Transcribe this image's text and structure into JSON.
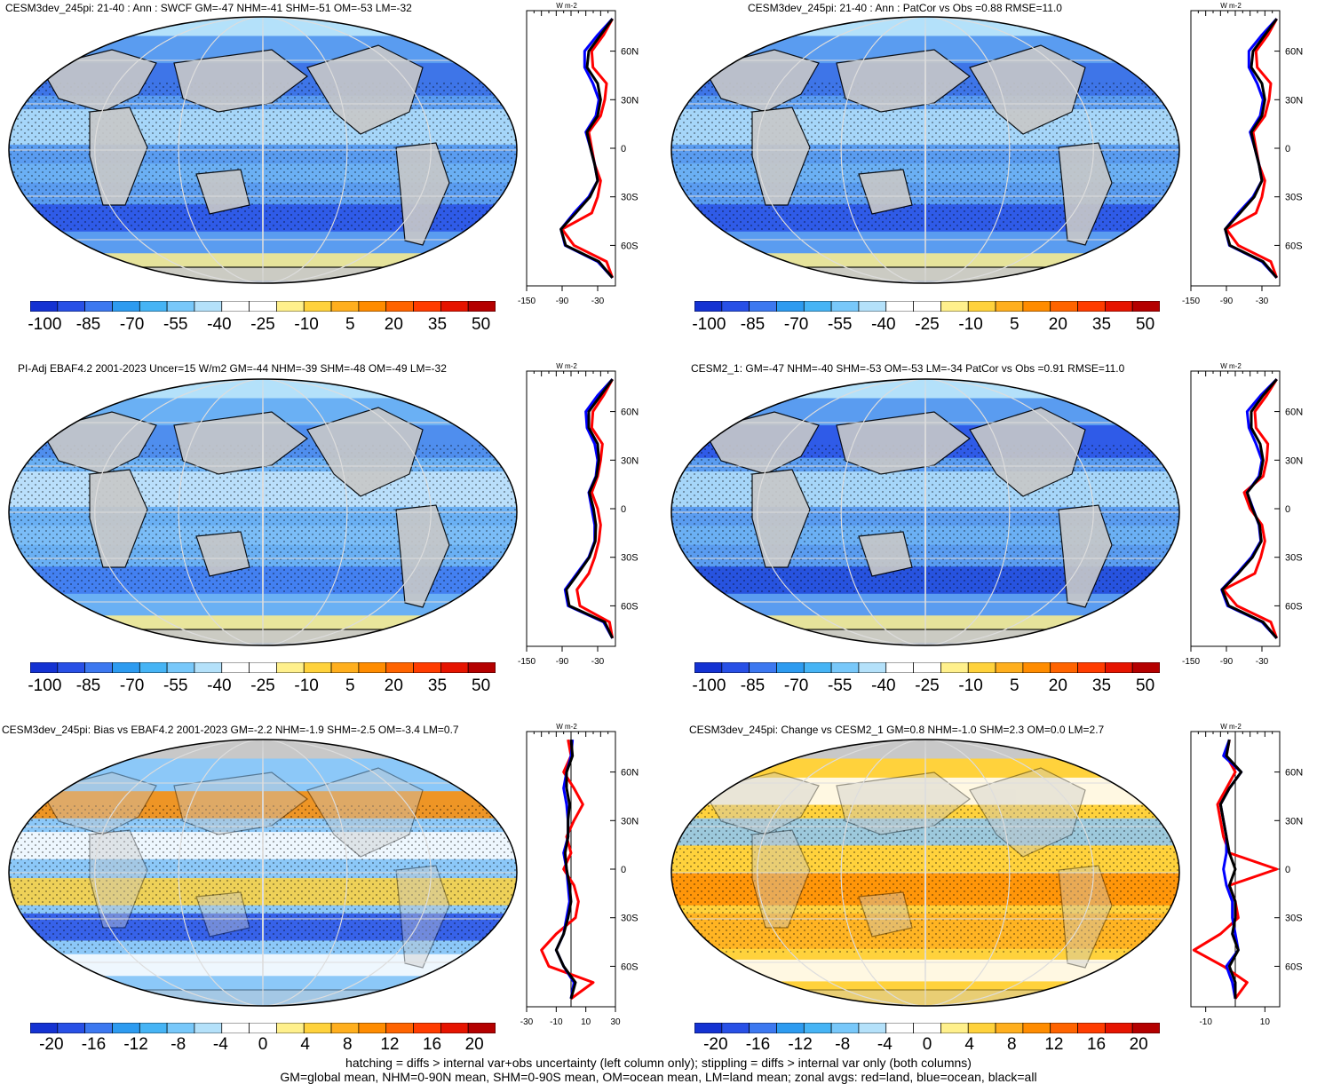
{
  "figure": {
    "footer_line1": "hatching = diffs > internal var+obs uncertainty (left column only); stippling = diffs > internal var only (both columns)",
    "footer_line2": "GM=global mean, NHM=0-90N mean, SHM=0-90S mean, OM=ocean mean, LM=land mean; zonal avgs: red=land, blue=ocean, black=all"
  },
  "colors": {
    "land": "#ff0000",
    "ocean": "#0000ff",
    "all": "#000000",
    "landmask": "#c8c8c8"
  },
  "chart_data": [
    {
      "type": "heatmap",
      "title": "CESM3dev_245pi: 21-40 : Ann : SWCF GM=-47 NHM=-41 SHM=-51 OM=-53 LM=-32",
      "colorbar_ticks": [
        "-100",
        "-85",
        "-70",
        "-55",
        "-40",
        "-25",
        "-10",
        "5",
        "20",
        "35",
        "50"
      ],
      "colorbar_range": [
        -105,
        55
      ],
      "zonal": {
        "units": "W m-2",
        "xticks": [
          "-150",
          "-90",
          "-30"
        ],
        "xlim": [
          -150,
          0
        ],
        "yticks": [
          "60N",
          "30N",
          "0",
          "30S",
          "60S"
        ],
        "lat": [
          80,
          70,
          60,
          50,
          40,
          30,
          20,
          10,
          0,
          -10,
          -20,
          -30,
          -40,
          -50,
          -60,
          -70,
          -80
        ],
        "series": [
          {
            "name": "land",
            "values": [
              -5,
              -20,
              -40,
              -38,
              -15,
              -18,
              -25,
              -45,
              -40,
              -35,
              -25,
              -30,
              -40,
              -90,
              -70,
              -15,
              -5
            ]
          },
          {
            "name": "ocean",
            "values": [
              -5,
              -30,
              -52,
              -52,
              -38,
              -28,
              -33,
              -50,
              -42,
              -35,
              -30,
              -45,
              -70,
              -92,
              -85,
              -30,
              -5
            ]
          },
          {
            "name": "all",
            "values": [
              -5,
              -25,
              -45,
              -48,
              -30,
              -25,
              -30,
              -48,
              -42,
              -35,
              -30,
              -43,
              -67,
              -92,
              -84,
              -28,
              -5
            ]
          }
        ]
      }
    },
    {
      "type": "heatmap",
      "title": "CESM3dev_245pi: 21-40 : Ann : PatCor vs Obs =0.88 RMSE=11.0",
      "colorbar_ticks": [
        "-100",
        "-85",
        "-70",
        "-55",
        "-40",
        "-25",
        "-10",
        "5",
        "20",
        "35",
        "50"
      ],
      "colorbar_range": [
        -105,
        55
      ],
      "zonal": {
        "units": "W m-2",
        "xticks": [
          "-150",
          "-90",
          "-30"
        ],
        "xlim": [
          -150,
          0
        ],
        "yticks": [
          "60N",
          "30N",
          "0",
          "30S",
          "60S"
        ],
        "lat": [
          80,
          70,
          60,
          50,
          40,
          30,
          20,
          10,
          0,
          -10,
          -20,
          -30,
          -40,
          -50,
          -60,
          -70,
          -80
        ],
        "series": [
          {
            "name": "land",
            "values": [
              -5,
              -20,
              -40,
              -38,
              -15,
              -18,
              -25,
              -45,
              -40,
              -35,
              -25,
              -30,
              -40,
              -90,
              -70,
              -15,
              -5
            ]
          },
          {
            "name": "ocean",
            "values": [
              -5,
              -30,
              -52,
              -52,
              -38,
              -28,
              -33,
              -50,
              -42,
              -35,
              -30,
              -45,
              -70,
              -92,
              -85,
              -30,
              -5
            ]
          },
          {
            "name": "all",
            "values": [
              -5,
              -25,
              -45,
              -48,
              -30,
              -25,
              -30,
              -48,
              -42,
              -35,
              -30,
              -43,
              -67,
              -92,
              -84,
              -28,
              -5
            ]
          }
        ]
      }
    },
    {
      "type": "heatmap",
      "title": "PI-Adj EBAF4.2 2001-2023 Uncer=15 W/m2 GM=-44 NHM=-39 SHM=-48 OM=-49 LM=-32",
      "colorbar_ticks": [
        "-100",
        "-85",
        "-70",
        "-55",
        "-40",
        "-25",
        "-10",
        "5",
        "20",
        "35",
        "50"
      ],
      "colorbar_range": [
        -105,
        55
      ],
      "zonal": {
        "units": "W m-2",
        "xticks": [
          "-150",
          "-90",
          "-30"
        ],
        "xlim": [
          -150,
          0
        ],
        "yticks": [
          "60N",
          "30N",
          "0",
          "30S",
          "60S"
        ],
        "lat": [
          80,
          70,
          60,
          50,
          40,
          30,
          20,
          10,
          0,
          -10,
          -20,
          -30,
          -40,
          -50,
          -60,
          -70,
          -80
        ],
        "series": [
          {
            "name": "land",
            "values": [
              -5,
              -20,
              -38,
              -40,
              -22,
              -25,
              -30,
              -40,
              -30,
              -25,
              -28,
              -35,
              -45,
              -65,
              -60,
              -10,
              -5
            ]
          },
          {
            "name": "ocean",
            "values": [
              -5,
              -30,
              -50,
              -48,
              -35,
              -30,
              -33,
              -45,
              -40,
              -35,
              -35,
              -45,
              -65,
              -85,
              -80,
              -20,
              -5
            ]
          },
          {
            "name": "all",
            "values": [
              -5,
              -25,
              -45,
              -45,
              -30,
              -28,
              -32,
              -44,
              -37,
              -33,
              -34,
              -44,
              -63,
              -83,
              -78,
              -18,
              -5
            ]
          }
        ]
      }
    },
    {
      "type": "heatmap",
      "title": "CESM2_1: GM=-47 NHM=-40 SHM=-53 OM=-53 LM=-34 PatCor vs Obs =0.91 RMSE=11.0",
      "colorbar_ticks": [
        "-100",
        "-85",
        "-70",
        "-55",
        "-40",
        "-25",
        "-10",
        "5",
        "20",
        "35",
        "50"
      ],
      "colorbar_range": [
        -105,
        55
      ],
      "zonal": {
        "units": "W m-2",
        "xticks": [
          "-150",
          "-90",
          "-30"
        ],
        "xlim": [
          -150,
          0
        ],
        "yticks": [
          "60N",
          "30N",
          "0",
          "30S",
          "60S"
        ],
        "lat": [
          80,
          70,
          60,
          50,
          40,
          30,
          20,
          10,
          0,
          -10,
          -20,
          -30,
          -40,
          -50,
          -60,
          -70,
          -80
        ],
        "series": [
          {
            "name": "land",
            "values": [
              -5,
              -22,
              -42,
              -40,
              -20,
              -22,
              -28,
              -60,
              -50,
              -30,
              -25,
              -32,
              -42,
              -95,
              -72,
              -15,
              -5
            ]
          },
          {
            "name": "ocean",
            "values": [
              -5,
              -32,
              -55,
              -52,
              -40,
              -30,
              -35,
              -55,
              -45,
              -35,
              -32,
              -48,
              -72,
              -98,
              -88,
              -30,
              -5
            ]
          },
          {
            "name": "all",
            "values": [
              -5,
              -28,
              -48,
              -48,
              -33,
              -28,
              -33,
              -55,
              -46,
              -34,
              -31,
              -46,
              -70,
              -97,
              -86,
              -28,
              -5
            ]
          }
        ]
      }
    },
    {
      "type": "heatmap",
      "title": "CESM3dev_245pi: Bias vs EBAF4.2 2001-2023 GM=-2.2 NHM=-1.9 SHM=-2.5 OM=-3.4 LM=0.7",
      "colorbar_ticks": [
        "-20",
        "-16",
        "-12",
        "-8",
        "-4",
        "0",
        "4",
        "8",
        "12",
        "16",
        "20"
      ],
      "colorbar_range": [
        -22,
        22
      ],
      "zonal": {
        "units": "W m-2",
        "xticks": [
          "-30",
          "-10",
          "10",
          "30"
        ],
        "xlim": [
          -30,
          30
        ],
        "yticks": [
          "60N",
          "30N",
          "0",
          "30S",
          "60S"
        ],
        "lat": [
          80,
          70,
          60,
          50,
          40,
          30,
          20,
          10,
          0,
          -10,
          -20,
          -30,
          -40,
          -50,
          -60,
          -70,
          -80
        ],
        "series": [
          {
            "name": "land",
            "values": [
              -2,
              0,
              -5,
              2,
              8,
              2,
              -3,
              0,
              -5,
              2,
              5,
              3,
              -10,
              -20,
              -15,
              15,
              0
            ]
          },
          {
            "name": "ocean",
            "values": [
              1,
              0,
              -3,
              -5,
              -3,
              -2,
              -2,
              -5,
              -3,
              -2,
              -1,
              -3,
              -5,
              -10,
              -5,
              2,
              0
            ]
          },
          {
            "name": "all",
            "values": [
              0,
              1,
              -3,
              -3,
              -1,
              -2,
              -2,
              -4,
              -3,
              -1,
              0,
              -2,
              -5,
              -10,
              -5,
              3,
              0
            ]
          }
        ]
      }
    },
    {
      "type": "heatmap",
      "title": "CESM3dev_245pi: Change vs CESM2_1 GM=0.8 NHM=-1.0 SHM=2.3 OM=0.0 LM=2.7",
      "colorbar_ticks": [
        "-20",
        "-16",
        "-12",
        "-8",
        "-4",
        "0",
        "4",
        "8",
        "12",
        "16",
        "20"
      ],
      "colorbar_range": [
        -22,
        22
      ],
      "zonal": {
        "units": "W m-2",
        "xticks": [
          "-10",
          "10"
        ],
        "xlim": [
          -15,
          15
        ],
        "yticks": [
          "60N",
          "30N",
          "0",
          "30S",
          "60S"
        ],
        "lat": [
          80,
          70,
          60,
          50,
          40,
          30,
          20,
          10,
          0,
          -10,
          -20,
          -30,
          -40,
          -50,
          -60,
          -70,
          -80
        ],
        "series": [
          {
            "name": "land",
            "values": [
              -2,
              -3,
              0,
              -3,
              -6,
              -5,
              -4,
              -2,
              14,
              -2,
              0,
              1,
              -5,
              -14,
              -4,
              4,
              0
            ]
          },
          {
            "name": "ocean",
            "values": [
              -2,
              -4,
              2,
              -2,
              -5,
              -4,
              -3,
              -3,
              -4,
              -3,
              -1,
              -1,
              0,
              1,
              -3,
              -1,
              0
            ]
          },
          {
            "name": "all",
            "values": [
              -2,
              -3,
              2,
              -2,
              -5,
              -4,
              -3,
              -2,
              0,
              -2,
              0,
              0,
              -1,
              1,
              -2,
              0,
              0
            ]
          }
        ]
      }
    }
  ]
}
